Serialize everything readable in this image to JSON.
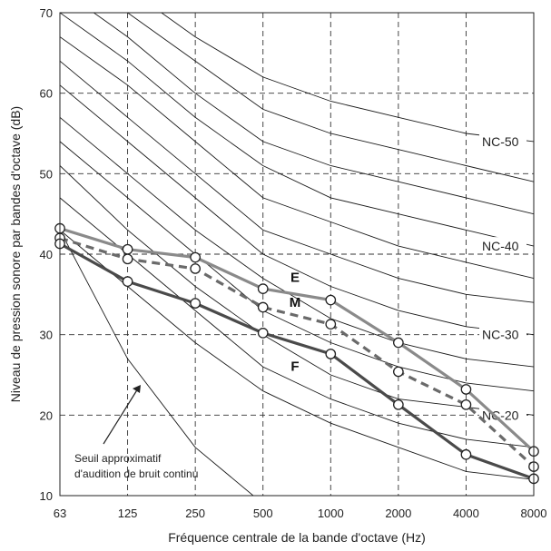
{
  "chart_data": {
    "type": "line",
    "xlabel": "Fréquence centrale de la bande d'octave (Hz)",
    "ylabel": "Niveau de pression sonore par bandes d'octave (dB)",
    "categories": [
      "63",
      "125",
      "250",
      "500",
      "1000",
      "2000",
      "4000",
      "8000"
    ],
    "ylim": [
      10,
      70
    ],
    "yticks": [
      10,
      20,
      30,
      40,
      50,
      60,
      70
    ],
    "grid": true,
    "series": [
      {
        "name": "E",
        "color": "#8a8a8a",
        "dash": false,
        "values": [
          43.2,
          40.6,
          39.6,
          35.7,
          34.3,
          29.0,
          23.2,
          15.5
        ]
      },
      {
        "name": "M",
        "color": "#6a6a6a",
        "dash": true,
        "values": [
          42.0,
          39.4,
          38.2,
          33.4,
          31.3,
          25.4,
          21.3,
          13.6
        ]
      },
      {
        "name": "F",
        "color": "#4a4a4a",
        "dash": false,
        "values": [
          41.3,
          36.6,
          33.9,
          30.2,
          27.6,
          21.3,
          15.1,
          12.1
        ]
      }
    ],
    "nc_curves": [
      {
        "values": [
          43,
          36,
          29,
          23,
          19,
          16,
          13,
          12
        ]
      },
      {
        "values": [
          47,
          40,
          33,
          26,
          22,
          19,
          17,
          16
        ]
      },
      {
        "label": "NC-20",
        "values": [
          51,
          43,
          36,
          30,
          25,
          22,
          21,
          20
        ]
      },
      {
        "values": [
          54,
          47,
          40,
          33,
          29,
          26,
          24,
          23
        ]
      },
      {
        "values": [
          57,
          50,
          43,
          37,
          32,
          29,
          27,
          26
        ]
      },
      {
        "label": "NC-30",
        "values": [
          61,
          54,
          47,
          40,
          36,
          33,
          31,
          30
        ]
      },
      {
        "values": [
          64,
          57,
          50,
          43,
          40,
          37,
          35,
          34
        ]
      },
      {
        "values": [
          67,
          61,
          54,
          47,
          44,
          41,
          39,
          37
        ]
      },
      {
        "label": "NC-40",
        "values": [
          70,
          64,
          57,
          51,
          47,
          45,
          43,
          41
        ]
      },
      {
        "values": [
          73,
          67,
          60,
          54,
          51,
          49,
          47,
          45
        ]
      },
      {
        "values": [
          76,
          70,
          64,
          58,
          55,
          53,
          51,
          49
        ]
      },
      {
        "label": "NC-50",
        "values": [
          79,
          73,
          67,
          62,
          59,
          57,
          55,
          54
        ]
      }
    ],
    "threshold_curve": {
      "values": [
        43,
        27,
        16,
        9
      ]
    },
    "annotation": {
      "line1": "Seuil approximatif",
      "line2": "d'audition de bruit continu"
    }
  }
}
